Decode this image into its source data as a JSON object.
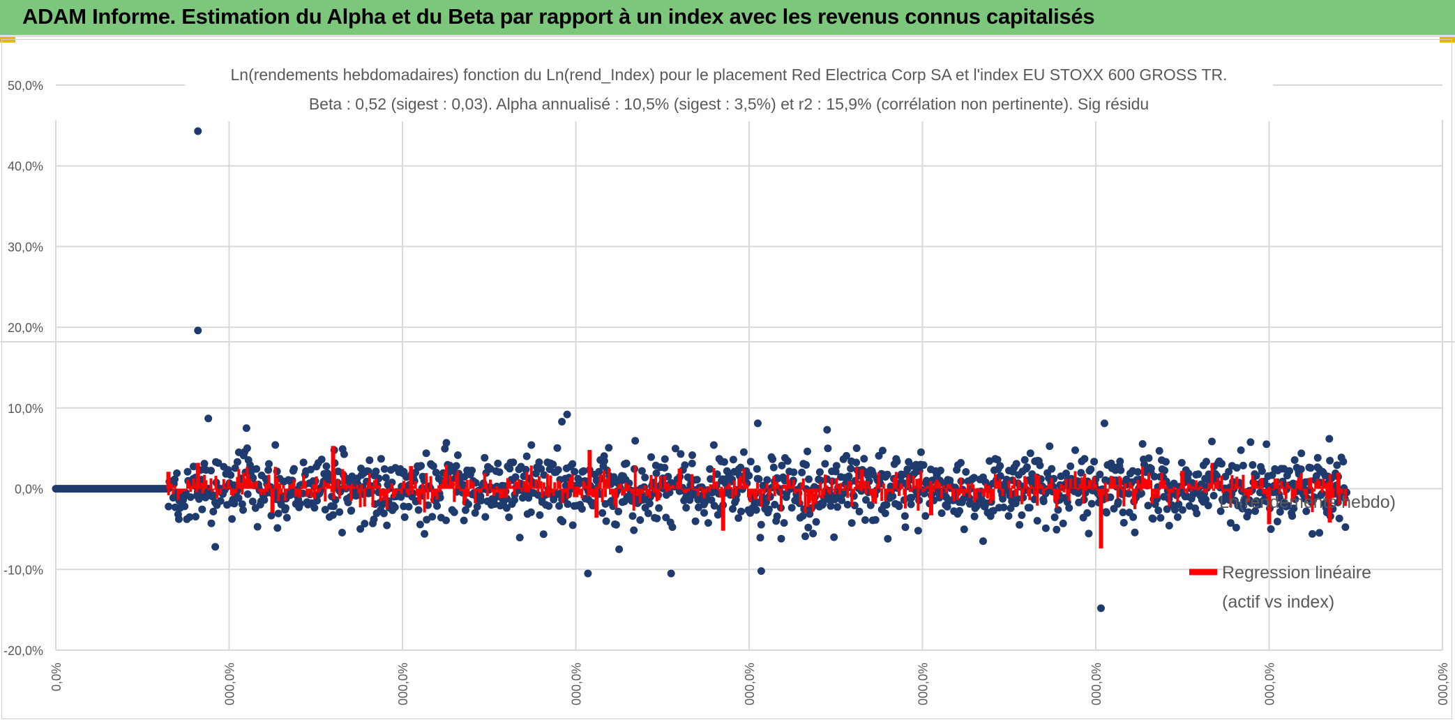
{
  "banner": {
    "title": "ADAM Informe. Estimation du Alpha et du Beta par rapport à un index avec les revenus connus capitalisés"
  },
  "colors": {
    "banner_bg": "#7dc77d",
    "points": "#1f3b6e",
    "regression": "#ff0000",
    "grid": "#d9d9d9",
    "corner": "#e8b800"
  },
  "chart_data": {
    "type": "scatter",
    "title_line1": "Ln(rendements hebdomadaires) fonction du Ln(rend_Index) pour le placement Red Electrica Corp SA et l'index EU STOXX 600 GROSS TR.",
    "title_line2": "Beta : 0,52 (sigest : 0,03).  Alpha annualisé : 10,5% (sigest : 3,5%) et r2 : 15,9% (corrélation non pertinente). Sig résidu",
    "ylim": [
      -20,
      50
    ],
    "y_ticks": [
      "50,0%",
      "40,0%",
      "30,0%",
      "20,0%",
      "10,0%",
      "0,0%",
      "-10,0%",
      "-20,0%"
    ],
    "y_tick_values": [
      50,
      40,
      30,
      20,
      10,
      0,
      -10,
      -20
    ],
    "x_ticks": [
      "0,0%",
      "000,0%",
      "000,0%",
      "000,0%",
      "000,0%",
      "000,0%",
      "000,0%",
      "000,0%",
      "000,0%"
    ],
    "x_range": [
      0,
      8
    ],
    "x_tick_values": [
      0,
      1,
      2,
      3,
      4,
      5,
      6,
      7,
      8
    ],
    "flat_segment": {
      "x_start": 0,
      "x_end": 0.65,
      "y": 0
    },
    "data_start_x": 0.65,
    "data_end_x": 7.45,
    "typical_spread_pct": 2.5,
    "outliers": [
      {
        "x": 0.82,
        "y": 44.3
      },
      {
        "x": 0.82,
        "y": 19.6
      },
      {
        "x": 0.88,
        "y": 8.7
      },
      {
        "x": 2.95,
        "y": 9.2
      },
      {
        "x": 2.92,
        "y": 8.3
      },
      {
        "x": 4.05,
        "y": 8.1
      },
      {
        "x": 6.05,
        "y": 8.1
      },
      {
        "x": 4.45,
        "y": 7.3
      },
      {
        "x": 1.1,
        "y": 7.5
      },
      {
        "x": 0.92,
        "y": -7.2
      },
      {
        "x": 3.07,
        "y": -10.5
      },
      {
        "x": 3.55,
        "y": -10.5
      },
      {
        "x": 4.07,
        "y": -10.2
      },
      {
        "x": 6.03,
        "y": -14.8
      },
      {
        "x": 3.25,
        "y": -7.5
      },
      {
        "x": 4.8,
        "y": -6.2
      },
      {
        "x": 5.35,
        "y": -6.5
      }
    ],
    "regression_spikes": [
      {
        "x": 0.82,
        "y": 3.2
      },
      {
        "x": 0.65,
        "y": 2.1
      },
      {
        "x": 1.6,
        "y": 5.3
      },
      {
        "x": 1.25,
        "y": -3.0
      },
      {
        "x": 2.05,
        "y": 2.8
      },
      {
        "x": 3.08,
        "y": 4.8
      },
      {
        "x": 3.12,
        "y": -3.6
      },
      {
        "x": 3.6,
        "y": 2.5
      },
      {
        "x": 3.85,
        "y": -5.2
      },
      {
        "x": 4.65,
        "y": 2.4
      },
      {
        "x": 5.05,
        "y": -3.3
      },
      {
        "x": 6.03,
        "y": -7.4
      },
      {
        "x": 6.5,
        "y": 2.2
      },
      {
        "x": 7.0,
        "y": -4.4
      },
      {
        "x": 7.35,
        "y": -4.2
      },
      {
        "x": 7.4,
        "y": 2.0
      }
    ],
    "legend": [
      {
        "name": "Ln(rendements hebdo)",
        "type": "marker"
      },
      {
        "name_line1": "Regression linéaire",
        "name_line2": "(actif vs index)",
        "type": "line"
      }
    ],
    "legend_position": "right"
  }
}
